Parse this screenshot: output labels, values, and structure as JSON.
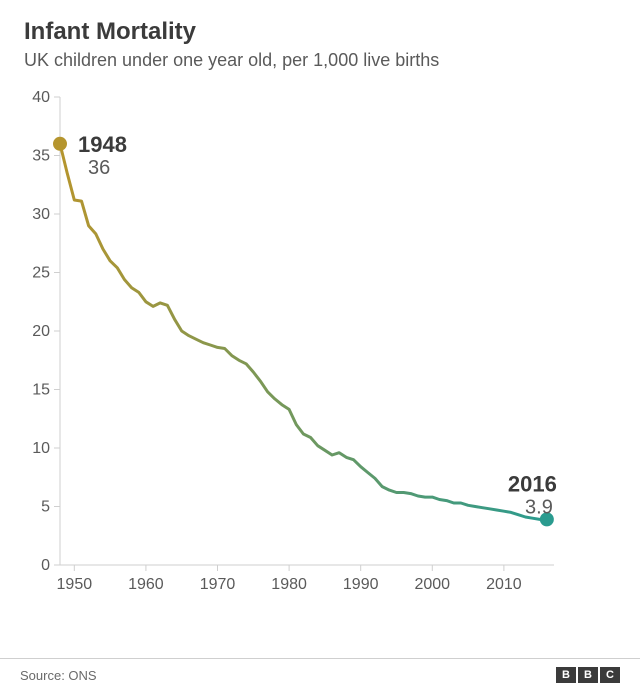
{
  "title": "Infant Mortality",
  "subtitle": "UK children under one year old, per 1,000 live births",
  "source": "Source: ONS",
  "logo": [
    "B",
    "B",
    "C"
  ],
  "chart": {
    "type": "line",
    "background_color": "#ffffff",
    "axis_color": "#cfcfcf",
    "tick_fontsize": 16,
    "line_width": 3,
    "marker_radius": 7,
    "start_color": "#b5952e",
    "end_color": "#2a9b8f",
    "xlim": [
      1948,
      2017
    ],
    "ylim": [
      0,
      40
    ],
    "ytick_step": 5,
    "xticks": [
      1950,
      1960,
      1970,
      1980,
      1990,
      2000,
      2010
    ],
    "series": {
      "years": [
        1948,
        1949,
        1950,
        1951,
        1952,
        1953,
        1954,
        1955,
        1956,
        1957,
        1958,
        1959,
        1960,
        1961,
        1962,
        1963,
        1964,
        1965,
        1966,
        1967,
        1968,
        1969,
        1970,
        1971,
        1972,
        1973,
        1974,
        1975,
        1976,
        1977,
        1978,
        1979,
        1980,
        1981,
        1982,
        1983,
        1984,
        1985,
        1986,
        1987,
        1988,
        1989,
        1990,
        1991,
        1992,
        1993,
        1994,
        1995,
        1996,
        1997,
        1998,
        1999,
        2000,
        2001,
        2002,
        2003,
        2004,
        2005,
        2006,
        2007,
        2008,
        2009,
        2010,
        2011,
        2012,
        2013,
        2014,
        2015,
        2016
      ],
      "values": [
        36,
        33.5,
        31.2,
        31.1,
        29.0,
        28.3,
        27.0,
        26.0,
        25.4,
        24.4,
        23.7,
        23.3,
        22.5,
        22.1,
        22.4,
        22.2,
        21.0,
        20.0,
        19.6,
        19.3,
        19.0,
        18.8,
        18.6,
        18.5,
        17.9,
        17.5,
        17.2,
        16.5,
        15.7,
        14.8,
        14.2,
        13.7,
        13.3,
        12.0,
        11.2,
        10.9,
        10.2,
        9.8,
        9.4,
        9.6,
        9.2,
        9.0,
        8.4,
        7.9,
        7.4,
        6.7,
        6.4,
        6.2,
        6.2,
        6.1,
        5.9,
        5.8,
        5.8,
        5.6,
        5.5,
        5.3,
        5.3,
        5.1,
        5.0,
        4.9,
        4.8,
        4.7,
        4.6,
        4.5,
        4.3,
        4.1,
        4.0,
        3.9,
        3.9
      ]
    },
    "annotations": {
      "start": {
        "year_label": "1948",
        "value_label": "36",
        "year": 1948,
        "value": 36
      },
      "end": {
        "year_label": "2016",
        "value_label": "3.9",
        "year": 2016,
        "value": 3.9
      }
    }
  }
}
